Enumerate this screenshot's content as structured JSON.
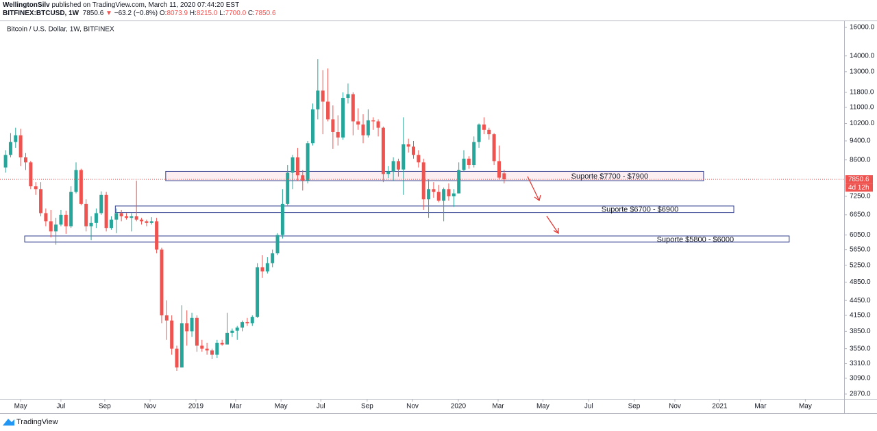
{
  "header": {
    "author": "WellingtonSilv",
    "published": "published on TradingView.com, March 11, 2020 07:44:20 EST",
    "symbol": "BITFINEX:BTCUSD, 1W",
    "last": "7850.6",
    "arrow": "▼",
    "change": "−63.2 (−0.8%)",
    "ohlc": [
      {
        "label": "O:",
        "value": "8073.9"
      },
      {
        "label": "H:",
        "value": "8215.0"
      },
      {
        "label": "L:",
        "value": "7700.0"
      },
      {
        "label": "C:",
        "value": "7850.6"
      }
    ]
  },
  "footer": {
    "brand": "TradingView"
  },
  "chart_data": {
    "type": "candlestick",
    "title": "Bitcoin / U.S. Dollar, 1W, BITFINEX",
    "up_color": "#26a69a",
    "down_color": "#ef5350",
    "log_scale": true,
    "open": [
      8300,
      8800,
      9350,
      9650,
      8700,
      8500,
      7600,
      7500,
      6700,
      6450,
      6150,
      6350,
      6650,
      6300,
      7400,
      8200,
      7000,
      6300,
      6400,
      6700,
      7300,
      6250,
      6500,
      6700,
      6600,
      6550,
      6600,
      6500,
      6450,
      6400,
      6450,
      5650,
      4150,
      4050,
      3550,
      3250,
      4000,
      3850,
      4100,
      3600,
      3550,
      3520,
      3450,
      3650,
      3620,
      3820,
      3860,
      3920,
      4020,
      4000,
      4120,
      5200,
      5100,
      5300,
      5550,
      6050,
      7000,
      8100,
      8700,
      8000,
      7800,
      9300,
      10900,
      11900,
      11300,
      10400,
      9800,
      9550,
      11500,
      11700,
      10300,
      10150,
      9650,
      10350,
      10300,
      10000,
      8050,
      8150,
      8550,
      8220,
      9250,
      9150,
      8800,
      8500,
      7150,
      7500,
      7400,
      7100,
      7500,
      7250,
      7350,
      8200,
      8650,
      8400,
      9350,
      10150,
      9900,
      9700,
      8550,
      8073.9
    ],
    "high": [
      9000,
      9750,
      10000,
      9950,
      8880,
      8560,
      7750,
      7750,
      6850,
      6800,
      6550,
      6800,
      6780,
      7600,
      8500,
      8250,
      7150,
      6600,
      6850,
      7420,
      7400,
      6600,
      6850,
      6800,
      6700,
      6700,
      7800,
      6550,
      6500,
      6580,
      6550,
      5700,
      4450,
      4150,
      3600,
      4350,
      4250,
      4200,
      4150,
      3700,
      3650,
      3550,
      3700,
      3700,
      4200,
      3900,
      3950,
      4050,
      4100,
      4150,
      5300,
      5500,
      5450,
      5650,
      6100,
      7500,
      8400,
      8800,
      9100,
      8200,
      9400,
      11200,
      13800,
      13100,
      13200,
      11100,
      10600,
      11800,
      12300,
      11800,
      10950,
      10650,
      10900,
      10500,
      10400,
      10050,
      8350,
      8700,
      8650,
      10500,
      9500,
      9400,
      9000,
      8650,
      7850,
      7750,
      7650,
      7550,
      7700,
      7500,
      8500,
      9000,
      8750,
      9600,
      10200,
      10500,
      10000,
      9750,
      9200,
      8215.0
    ],
    "low": [
      8100,
      8700,
      9100,
      8350,
      8200,
      7500,
      7300,
      6600,
      6300,
      5980,
      5780,
      6300,
      6080,
      6250,
      7350,
      6950,
      6150,
      5900,
      6250,
      6650,
      6150,
      6200,
      6100,
      6450,
      6500,
      6150,
      6450,
      6350,
      6300,
      6350,
      5550,
      4000,
      3700,
      3450,
      3200,
      3250,
      3600,
      3750,
      3500,
      3500,
      3450,
      3380,
      3400,
      3600,
      3620,
      3750,
      3700,
      3850,
      3950,
      3950,
      4100,
      4950,
      5050,
      5200,
      5500,
      5950,
      6950,
      7500,
      7800,
      7450,
      7700,
      9200,
      10400,
      9700,
      10300,
      9050,
      9200,
      9450,
      11200,
      9650,
      9900,
      9300,
      9550,
      9900,
      9600,
      7750,
      7900,
      7800,
      7950,
      7300,
      8900,
      8650,
      8300,
      6800,
      6550,
      7200,
      7050,
      6450,
      7100,
      6900,
      7350,
      8150,
      8250,
      8300,
      9100,
      9700,
      9450,
      8400,
      7850,
      7700.0
    ],
    "close": [
      8800,
      9350,
      9650,
      8700,
      8500,
      7600,
      7500,
      6700,
      6450,
      6150,
      6350,
      6650,
      6300,
      7400,
      8200,
      7000,
      6300,
      6400,
      6700,
      7300,
      6250,
      6500,
      6700,
      6600,
      6550,
      6600,
      6500,
      6450,
      6400,
      6450,
      5650,
      4150,
      4050,
      3550,
      3250,
      4000,
      3850,
      4100,
      3600,
      3550,
      3520,
      3450,
      3650,
      3620,
      3820,
      3860,
      3920,
      4020,
      4000,
      4120,
      5200,
      5100,
      5300,
      5550,
      6050,
      7000,
      8100,
      8700,
      8000,
      7800,
      9300,
      10900,
      11900,
      11300,
      10400,
      9800,
      9550,
      11500,
      11700,
      10300,
      10150,
      9650,
      10350,
      10300,
      10000,
      8050,
      8150,
      8550,
      8220,
      9250,
      9150,
      8800,
      8500,
      7150,
      7500,
      7400,
      7100,
      7500,
      7250,
      7350,
      8200,
      8650,
      8400,
      9350,
      10150,
      9900,
      9700,
      8550,
      7913.8,
      7850.6
    ],
    "price_label": "7850.6",
    "countdown": "4d 12h",
    "xlim": [
      -1.1,
      166.5
    ],
    "xticks": [
      {
        "value": 3.0,
        "label": "May"
      },
      {
        "value": 11.0,
        "label": "Jul"
      },
      {
        "value": 19.7,
        "label": "Sep"
      },
      {
        "value": 28.7,
        "label": "Nov"
      },
      {
        "value": 37.8,
        "label": "2019"
      },
      {
        "value": 45.7,
        "label": "Mar"
      },
      {
        "value": 54.7,
        "label": "May"
      },
      {
        "value": 62.6,
        "label": "Jul"
      },
      {
        "value": 71.8,
        "label": "Sep"
      },
      {
        "value": 80.8,
        "label": "Nov"
      },
      {
        "value": 89.9,
        "label": "2020"
      },
      {
        "value": 97.8,
        "label": "Mar"
      },
      {
        "value": 106.7,
        "label": "May"
      },
      {
        "value": 115.8,
        "label": "Jul"
      },
      {
        "value": 124.8,
        "label": "Sep"
      },
      {
        "value": 132.9,
        "label": "Nov"
      },
      {
        "value": 141.8,
        "label": "2021"
      },
      {
        "value": 149.9,
        "label": "Mar"
      },
      {
        "value": 158.8,
        "label": "May"
      }
    ],
    "ylim": [
      2806,
      16420
    ],
    "yticks": [
      {
        "value": 16000,
        "label": "16000.0"
      },
      {
        "value": 14000,
        "label": "14000.0"
      },
      {
        "value": 13000,
        "label": "13000.0"
      },
      {
        "value": 11800,
        "label": "11800.0"
      },
      {
        "value": 11000,
        "label": "11000.0"
      },
      {
        "value": 10200,
        "label": "10200.0"
      },
      {
        "value": 9400,
        "label": "9400.0"
      },
      {
        "value": 8600,
        "label": "8600.0"
      },
      {
        "value": 7250,
        "label": "7250.0"
      },
      {
        "value": 6650,
        "label": "6650.0"
      },
      {
        "value": 6050,
        "label": "6050.0"
      },
      {
        "value": 5650,
        "label": "5650.0"
      },
      {
        "value": 5250,
        "label": "5250.0"
      },
      {
        "value": 4850,
        "label": "4850.0"
      },
      {
        "value": 4450,
        "label": "4450.0"
      },
      {
        "value": 4150,
        "label": "4150.0"
      },
      {
        "value": 3850,
        "label": "3850.0"
      },
      {
        "value": 3550,
        "label": "3550.0"
      },
      {
        "value": 3310,
        "label": "3310.0"
      },
      {
        "value": 3090,
        "label": "3090.0"
      },
      {
        "value": 2870,
        "label": "2870.0"
      }
    ],
    "annotations": [
      {
        "text": "Suporte $7700 - $7900",
        "x0": 31.8,
        "x1": 138.6,
        "y0": 7800,
        "y1": 8150
      },
      {
        "text": "Suporte $6700 - $6900",
        "x0": 21.8,
        "x1": 144.6,
        "y0": 6720,
        "y1": 6930
      },
      {
        "text": "Suporte $5800 - $6000",
        "x0": 3.8,
        "x1": 155.6,
        "y0": 5850,
        "y1": 6020
      }
    ]
  }
}
